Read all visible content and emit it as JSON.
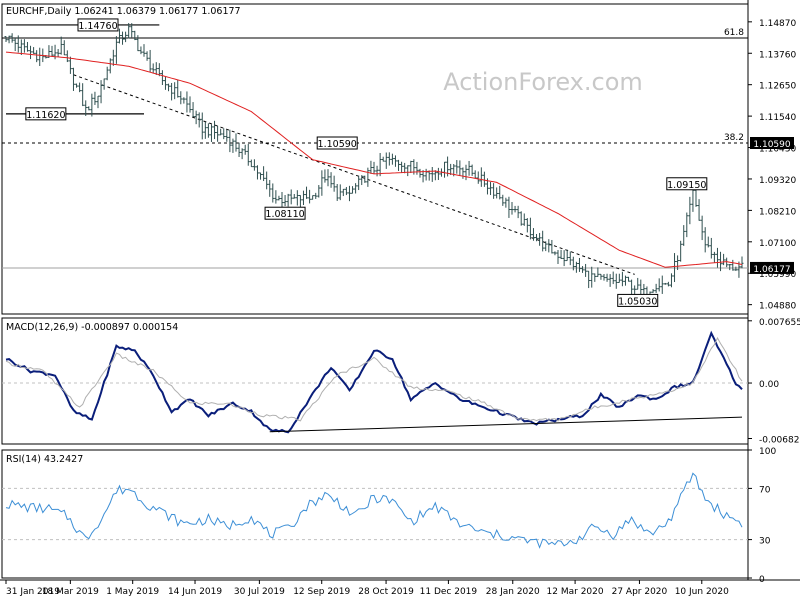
{
  "chart_data": [
    {
      "type": "ohlc",
      "panel": "price",
      "title": "EURCHF,Daily  1.06241 1.06379 1.06177 1.06177",
      "watermark": "ActionForex.com",
      "ylim": [
        1.0455,
        1.155
      ],
      "y_ticks": [
        "1.14870",
        "1.13760",
        "1.12650",
        "1.11540",
        "1.10430",
        "1.09320",
        "1.08210",
        "1.07100",
        "1.05990",
        "1.04880"
      ],
      "y_tick_values": [
        1.1487,
        1.1376,
        1.1265,
        1.1154,
        1.1043,
        1.0932,
        1.0821,
        1.071,
        1.0599,
        1.0488
      ],
      "current_price_label": "1.06177",
      "current_price": 1.06177,
      "fib_levels": [
        {
          "label": "61.8",
          "value": 1.143
        },
        {
          "label": "38.2",
          "value": 1.1059
        }
      ],
      "level_label_right": "1.10590",
      "annotations": [
        {
          "text": "1.14760",
          "date_index": 30,
          "value": 1.1476
        },
        {
          "text": "1.11620",
          "date_index": 13,
          "value": 1.1162
        },
        {
          "text": "1.10590",
          "date_index": 108,
          "value": 1.1059
        },
        {
          "text": "1.08110",
          "date_index": 91,
          "value": 1.0811
        },
        {
          "text": "1.09150",
          "date_index": 222,
          "value": 1.0915
        },
        {
          "text": "1.05030",
          "date_index": 206,
          "value": 1.0503
        }
      ],
      "trendline": {
        "points": [
          [
            22,
            1.13
          ],
          [
            205,
            1.0595
          ]
        ]
      },
      "horizontal_segments": [
        {
          "from": 0,
          "to": 50,
          "value": 1.1476
        },
        {
          "from": 0,
          "to": 45,
          "value": 1.1162
        }
      ],
      "moving_average_color": "#e02020",
      "bar_color": "#2f4f4f",
      "close_waypoints": [
        [
          0,
          1.1435
        ],
        [
          6,
          1.139
        ],
        [
          12,
          1.136
        ],
        [
          18,
          1.139
        ],
        [
          26,
          1.1175
        ],
        [
          30,
          1.123
        ],
        [
          36,
          1.141
        ],
        [
          40,
          1.146
        ],
        [
          44,
          1.138
        ],
        [
          50,
          1.129
        ],
        [
          58,
          1.121
        ],
        [
          64,
          1.111
        ],
        [
          72,
          1.108
        ],
        [
          80,
          1.099
        ],
        [
          88,
          1.086
        ],
        [
          94,
          1.086
        ],
        [
          100,
          1.087
        ],
        [
          104,
          1.094
        ],
        [
          108,
          1.088
        ],
        [
          112,
          1.088
        ],
        [
          118,
          1.095
        ],
        [
          124,
          1.1
        ],
        [
          132,
          1.098
        ],
        [
          138,
          1.095
        ],
        [
          144,
          1.098
        ],
        [
          150,
          1.097
        ],
        [
          156,
          1.092
        ],
        [
          162,
          1.086
        ],
        [
          170,
          1.076
        ],
        [
          176,
          1.069
        ],
        [
          184,
          1.064
        ],
        [
          190,
          1.059
        ],
        [
          196,
          1.057
        ],
        [
          202,
          1.057
        ],
        [
          208,
          1.053
        ],
        [
          212,
          1.056
        ],
        [
          216,
          1.056
        ],
        [
          220,
          1.069
        ],
        [
          224,
          1.088
        ],
        [
          228,
          1.07
        ],
        [
          232,
          1.065
        ],
        [
          236,
          1.062
        ],
        [
          240,
          1.0618
        ]
      ],
      "ma_waypoints": [
        [
          0,
          1.138
        ],
        [
          20,
          1.136
        ],
        [
          40,
          1.133
        ],
        [
          60,
          1.127
        ],
        [
          80,
          1.117
        ],
        [
          100,
          1.1
        ],
        [
          120,
          1.095
        ],
        [
          140,
          1.096
        ],
        [
          160,
          1.092
        ],
        [
          180,
          1.081
        ],
        [
          200,
          1.068
        ],
        [
          215,
          1.062
        ],
        [
          225,
          1.063
        ],
        [
          235,
          1.064
        ],
        [
          240,
          1.063
        ]
      ]
    },
    {
      "type": "line",
      "panel": "macd",
      "title": "MACD(12,26,9) -0.000897 0.000154",
      "ylim": [
        -0.0075,
        0.008
      ],
      "y_ticks": [
        "0.007655",
        "0.00",
        "-0.006822"
      ],
      "y_tick_values": [
        0.007655,
        0.0,
        -0.006822
      ],
      "series": [
        {
          "name": "MACD",
          "color": "#0a1e7a",
          "waypoints": [
            [
              0,
              0.003
            ],
            [
              8,
              0.0015
            ],
            [
              16,
              0.001
            ],
            [
              22,
              -0.0035
            ],
            [
              28,
              -0.0045
            ],
            [
              36,
              0.0045
            ],
            [
              42,
              0.004
            ],
            [
              48,
              0.001
            ],
            [
              54,
              -0.0035
            ],
            [
              60,
              -0.002
            ],
            [
              66,
              -0.004
            ],
            [
              74,
              -0.0025
            ],
            [
              80,
              -0.0035
            ],
            [
              86,
              -0.0058
            ],
            [
              92,
              -0.006
            ],
            [
              98,
              -0.0025
            ],
            [
              106,
              0.002
            ],
            [
              112,
              -0.001
            ],
            [
              120,
              0.004
            ],
            [
              126,
              0.003
            ],
            [
              132,
              -0.002
            ],
            [
              140,
              0.0
            ],
            [
              148,
              -0.002
            ],
            [
              156,
              -0.003
            ],
            [
              164,
              -0.004
            ],
            [
              172,
              -0.005
            ],
            [
              180,
              -0.0045
            ],
            [
              188,
              -0.004
            ],
            [
              194,
              -0.0015
            ],
            [
              200,
              -0.003
            ],
            [
              206,
              -0.0015
            ],
            [
              212,
              -0.002
            ],
            [
              218,
              -0.0005
            ],
            [
              224,
              0.0
            ],
            [
              230,
              0.006
            ],
            [
              234,
              0.003
            ],
            [
              238,
              0.0
            ],
            [
              240,
              -0.0009
            ]
          ]
        },
        {
          "name": "Signal",
          "color": "#b0b0b0",
          "waypoints": [
            [
              0,
              0.0025
            ],
            [
              12,
              0.0015
            ],
            [
              24,
              -0.003
            ],
            [
              36,
              0.0035
            ],
            [
              48,
              0.0015
            ],
            [
              60,
              -0.0025
            ],
            [
              72,
              -0.0025
            ],
            [
              84,
              -0.004
            ],
            [
              96,
              -0.0045
            ],
            [
              108,
              0.001
            ],
            [
              120,
              0.003
            ],
            [
              132,
              -0.0005
            ],
            [
              144,
              -0.001
            ],
            [
              156,
              -0.0025
            ],
            [
              168,
              -0.0045
            ],
            [
              180,
              -0.0045
            ],
            [
              192,
              -0.003
            ],
            [
              204,
              -0.002
            ],
            [
              216,
              -0.001
            ],
            [
              224,
              0.0
            ],
            [
              232,
              0.0055
            ],
            [
              240,
              0.0002
            ]
          ]
        }
      ],
      "trendline": {
        "points": [
          [
            86,
            -0.006
          ],
          [
            240,
            -0.0042
          ]
        ]
      },
      "zero_line": 0.0
    },
    {
      "type": "line",
      "panel": "rsi",
      "title": "RSI(14) 43.2427",
      "ylim": [
        0,
        100
      ],
      "y_ticks": [
        "100",
        "70",
        "30",
        "0"
      ],
      "y_tick_values": [
        100,
        70,
        30,
        0
      ],
      "series": [
        {
          "name": "RSI",
          "color": "#3d8fd6",
          "waypoints": [
            [
              0,
              58
            ],
            [
              8,
              55
            ],
            [
              14,
              54
            ],
            [
              20,
              48
            ],
            [
              26,
              30
            ],
            [
              32,
              50
            ],
            [
              36,
              68
            ],
            [
              40,
              70
            ],
            [
              46,
              58
            ],
            [
              52,
              50
            ],
            [
              58,
              42
            ],
            [
              66,
              46
            ],
            [
              72,
              40
            ],
            [
              80,
              48
            ],
            [
              86,
              34
            ],
            [
              92,
              38
            ],
            [
              98,
              56
            ],
            [
              104,
              65
            ],
            [
              108,
              60
            ],
            [
              114,
              48
            ],
            [
              120,
              63
            ],
            [
              126,
              60
            ],
            [
              132,
              44
            ],
            [
              140,
              56
            ],
            [
              148,
              42
            ],
            [
              156,
              35
            ],
            [
              164,
              32
            ],
            [
              172,
              28
            ],
            [
              180,
              26
            ],
            [
              186,
              30
            ],
            [
              192,
              40
            ],
            [
              198,
              34
            ],
            [
              204,
              46
            ],
            [
              210,
              34
            ],
            [
              216,
              44
            ],
            [
              220,
              62
            ],
            [
              224,
              82
            ],
            [
              228,
              62
            ],
            [
              234,
              50
            ],
            [
              240,
              43
            ]
          ]
        }
      ],
      "levels": [
        70,
        30
      ]
    }
  ],
  "x_labels": [
    "31 Jan 2019",
    "18 Mar 2019",
    "1 May 2019",
    "14 Jun 2019",
    "30 Jul 2019",
    "12 Sep 2019",
    "28 Oct 2019",
    "11 Dec 2019",
    "28 Jan 2020",
    "12 Mar 2020",
    "27 Apr 2020",
    "10 Jun 2020"
  ],
  "x_label_index": [
    0,
    32,
    63,
    94,
    126,
    157,
    189,
    220,
    252,
    283,
    315,
    346
  ]
}
